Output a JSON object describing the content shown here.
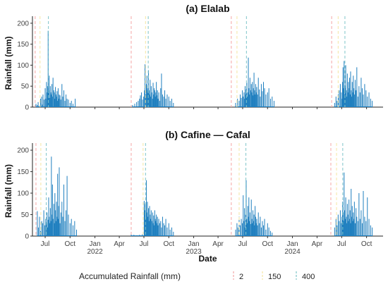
{
  "figure": {
    "x_axis_title": "Date",
    "legend": {
      "title": "Accumulated Rainfall (mm)",
      "items": [
        {
          "label": "2",
          "color": "#f4a6a6"
        },
        {
          "label": "150",
          "color": "#f5e6a3"
        },
        {
          "label": "400",
          "color": "#7fc4c9"
        }
      ]
    },
    "x_tick_labels": [
      {
        "date": "2021-07-01",
        "text": "Jul"
      },
      {
        "date": "2021-10-01",
        "text": "Oct"
      },
      {
        "date": "2022-01-01",
        "text": "Jan\n2022"
      },
      {
        "date": "2022-04-01",
        "text": "Apr"
      },
      {
        "date": "2022-07-01",
        "text": "Jul"
      },
      {
        "date": "2022-10-01",
        "text": "Oct"
      },
      {
        "date": "2023-01-01",
        "text": "Jan\n2023"
      },
      {
        "date": "2023-04-01",
        "text": "Apr"
      },
      {
        "date": "2023-07-01",
        "text": "Jul"
      },
      {
        "date": "2023-10-01",
        "text": "Oct"
      },
      {
        "date": "2024-01-01",
        "text": "Jan\n2024"
      },
      {
        "date": "2024-04-01",
        "text": "Apr"
      },
      {
        "date": "2024-07-01",
        "text": "Jul"
      },
      {
        "date": "2024-10-01",
        "text": "Oct"
      }
    ]
  },
  "chart_data": [
    {
      "type": "bar",
      "title": "(a) Elalab",
      "xlabel": "",
      "ylabel": "Rainfall (mm)",
      "ylim": [
        0,
        210
      ],
      "yticks": [
        0,
        50,
        100,
        150,
        200
      ],
      "xlim": [
        "2021-05-15",
        "2024-12-01"
      ],
      "bar_color": "#1f7fbf",
      "series": [
        {
          "x": [
            "2021-05-28",
            "2021-06-02",
            "2021-06-05",
            "2021-06-10",
            "2021-06-14",
            "2021-06-18",
            "2021-06-20",
            "2021-06-23",
            "2021-06-27",
            "2021-07-01",
            "2021-07-03",
            "2021-07-06",
            "2021-07-08",
            "2021-07-10",
            "2021-07-12",
            "2021-07-14",
            "2021-07-16",
            "2021-07-18",
            "2021-07-20",
            "2021-07-22",
            "2021-07-24",
            "2021-07-26",
            "2021-07-28",
            "2021-07-30",
            "2021-08-02",
            "2021-08-04",
            "2021-08-06",
            "2021-08-08",
            "2021-08-10",
            "2021-08-12",
            "2021-08-14",
            "2021-08-16",
            "2021-08-18",
            "2021-08-20",
            "2021-08-22",
            "2021-08-25",
            "2021-08-28",
            "2021-09-01",
            "2021-09-04",
            "2021-09-08",
            "2021-09-12",
            "2021-09-16",
            "2021-09-20",
            "2021-09-25",
            "2021-10-01",
            "2021-10-06",
            "2021-10-12",
            "2021-10-20"
          ],
          "y": [
            8,
            5,
            12,
            3,
            20,
            25,
            6,
            30,
            18,
            45,
            20,
            60,
            35,
            50,
            182,
            40,
            75,
            22,
            50,
            35,
            30,
            55,
            25,
            70,
            40,
            35,
            20,
            48,
            30,
            25,
            38,
            15,
            45,
            20,
            30,
            28,
            18,
            55,
            25,
            40,
            15,
            30,
            20,
            18,
            10,
            15,
            8,
            20
          ]
        },
        {
          "x": [
            "2022-05-20",
            "2022-05-28",
            "2022-06-04",
            "2022-06-10",
            "2022-06-15",
            "2022-06-18",
            "2022-06-22",
            "2022-06-26",
            "2022-06-30",
            "2022-07-03",
            "2022-07-05",
            "2022-07-08",
            "2022-07-10",
            "2022-07-12",
            "2022-07-14",
            "2022-07-16",
            "2022-07-18",
            "2022-07-20",
            "2022-07-22",
            "2022-07-24",
            "2022-07-26",
            "2022-07-28",
            "2022-07-30",
            "2022-08-02",
            "2022-08-04",
            "2022-08-06",
            "2022-08-08",
            "2022-08-10",
            "2022-08-12",
            "2022-08-14",
            "2022-08-16",
            "2022-08-18",
            "2022-08-20",
            "2022-08-22",
            "2022-08-25",
            "2022-08-28",
            "2022-09-01",
            "2022-09-04",
            "2022-09-08",
            "2022-09-12",
            "2022-09-16",
            "2022-09-20",
            "2022-09-25",
            "2022-10-01",
            "2022-10-06",
            "2022-10-12",
            "2022-10-18"
          ],
          "y": [
            5,
            8,
            12,
            15,
            20,
            28,
            35,
            18,
            25,
            40,
            102,
            30,
            55,
            75,
            45,
            35,
            88,
            40,
            30,
            65,
            25,
            50,
            35,
            20,
            58,
            30,
            45,
            40,
            25,
            35,
            60,
            28,
            40,
            20,
            35,
            15,
            45,
            80,
            30,
            25,
            40,
            20,
            30,
            25,
            15,
            20,
            10
          ]
        },
        {
          "x": [
            "2023-06-05",
            "2023-06-12",
            "2023-06-18",
            "2023-06-22",
            "2023-06-26",
            "2023-06-30",
            "2023-07-03",
            "2023-07-06",
            "2023-07-08",
            "2023-07-10",
            "2023-07-12",
            "2023-07-14",
            "2023-07-16",
            "2023-07-18",
            "2023-07-20",
            "2023-07-22",
            "2023-07-24",
            "2023-07-26",
            "2023-07-28",
            "2023-07-30",
            "2023-08-02",
            "2023-08-04",
            "2023-08-06",
            "2023-08-08",
            "2023-08-10",
            "2023-08-12",
            "2023-08-14",
            "2023-08-16",
            "2023-08-18",
            "2023-08-20",
            "2023-08-22",
            "2023-08-25",
            "2023-08-28",
            "2023-09-01",
            "2023-09-04",
            "2023-09-08",
            "2023-09-12",
            "2023-09-16",
            "2023-09-20",
            "2023-09-25",
            "2023-10-01",
            "2023-10-06",
            "2023-10-12",
            "2023-10-18",
            "2023-10-25"
          ],
          "y": [
            10,
            20,
            15,
            30,
            22,
            40,
            25,
            35,
            20,
            50,
            30,
            42,
            58,
            25,
            35,
            118,
            45,
            30,
            70,
            40,
            55,
            35,
            60,
            28,
            45,
            82,
            40,
            30,
            55,
            35,
            48,
            30,
            70,
            42,
            25,
            55,
            38,
            60,
            45,
            30,
            35,
            45,
            20,
            25,
            15
          ]
        },
        {
          "x": [
            "2024-06-05",
            "2024-06-10",
            "2024-06-14",
            "2024-06-18",
            "2024-06-22",
            "2024-06-26",
            "2024-06-30",
            "2024-07-02",
            "2024-07-04",
            "2024-07-06",
            "2024-07-08",
            "2024-07-10",
            "2024-07-12",
            "2024-07-14",
            "2024-07-16",
            "2024-07-18",
            "2024-07-20",
            "2024-07-22",
            "2024-07-24",
            "2024-07-26",
            "2024-07-28",
            "2024-07-30",
            "2024-08-01",
            "2024-08-03",
            "2024-08-05",
            "2024-08-07",
            "2024-08-09",
            "2024-08-11",
            "2024-08-13",
            "2024-08-15",
            "2024-08-17",
            "2024-08-20",
            "2024-08-23",
            "2024-08-26",
            "2024-08-30",
            "2024-09-03",
            "2024-09-07",
            "2024-09-11",
            "2024-09-15",
            "2024-09-19",
            "2024-09-24",
            "2024-09-29",
            "2024-10-04",
            "2024-10-10",
            "2024-10-16",
            "2024-10-22"
          ],
          "y": [
            10,
            25,
            15,
            30,
            40,
            55,
            35,
            20,
            60,
            95,
            45,
            110,
            30,
            50,
            100,
            40,
            25,
            80,
            35,
            60,
            45,
            70,
            30,
            85,
            40,
            25,
            60,
            35,
            75,
            45,
            30,
            65,
            40,
            95,
            25,
            50,
            35,
            70,
            45,
            30,
            55,
            40,
            25,
            35,
            20,
            15
          ]
        }
      ],
      "vlines": [
        {
          "label": "2",
          "dates": [
            "2021-05-25",
            "2022-05-15",
            "2023-05-20",
            "2024-05-25"
          ]
        },
        {
          "label": "150",
          "dates": [
            "2021-06-12",
            "2022-07-07",
            "2023-06-10",
            "2024-06-18"
          ]
        },
        {
          "label": "400",
          "dates": [
            "2021-07-13",
            "2022-07-17",
            "2023-07-15",
            "2024-07-13"
          ]
        }
      ]
    },
    {
      "type": "bar",
      "title": "(b) Cafine — Cafal",
      "xlabel": "Date",
      "ylabel": "Rainfall (mm)",
      "ylim": [
        0,
        210
      ],
      "yticks": [
        0,
        50,
        100,
        150,
        200
      ],
      "xlim": [
        "2021-05-15",
        "2024-12-01"
      ],
      "bar_color": "#1f7fbf",
      "series": [
        {
          "x": [
            "2021-06-02",
            "2021-06-06",
            "2021-06-10",
            "2021-06-14",
            "2021-06-18",
            "2021-06-22",
            "2021-06-26",
            "2021-06-30",
            "2021-07-03",
            "2021-07-06",
            "2021-07-08",
            "2021-07-10",
            "2021-07-12",
            "2021-07-14",
            "2021-07-16",
            "2021-07-18",
            "2021-07-20",
            "2021-07-22",
            "2021-07-24",
            "2021-07-26",
            "2021-07-28",
            "2021-07-30",
            "2021-08-02",
            "2021-08-04",
            "2021-08-06",
            "2021-08-08",
            "2021-08-10",
            "2021-08-12",
            "2021-08-14",
            "2021-08-16",
            "2021-08-18",
            "2021-08-20",
            "2021-08-22",
            "2021-08-25",
            "2021-08-28",
            "2021-09-01",
            "2021-09-04",
            "2021-09-08",
            "2021-09-12",
            "2021-09-16",
            "2021-09-20",
            "2021-09-25",
            "2021-10-01",
            "2021-10-06",
            "2021-10-12",
            "2021-10-18",
            "2021-10-25"
          ],
          "y": [
            58,
            20,
            45,
            12,
            35,
            30,
            60,
            25,
            40,
            30,
            55,
            20,
            38,
            90,
            45,
            30,
            65,
            35,
            185,
            50,
            120,
            40,
            75,
            30,
            100,
            60,
            35,
            80,
            45,
            145,
            40,
            70,
            160,
            30,
            55,
            80,
            45,
            120,
            35,
            60,
            140,
            50,
            30,
            40,
            25,
            35,
            15
          ]
        },
        {
          "x": [
            "2022-05-15",
            "2022-05-25",
            "2022-06-05",
            "2022-06-15",
            "2022-06-25",
            "2022-07-02",
            "2022-07-04",
            "2022-07-06",
            "2022-07-08",
            "2022-07-10",
            "2022-07-12",
            "2022-07-14",
            "2022-07-16",
            "2022-07-18",
            "2022-07-20",
            "2022-07-22",
            "2022-07-24",
            "2022-07-26",
            "2022-07-28",
            "2022-07-30",
            "2022-08-02",
            "2022-08-04",
            "2022-08-06",
            "2022-08-08",
            "2022-08-10",
            "2022-08-12",
            "2022-08-14",
            "2022-08-16",
            "2022-08-18",
            "2022-08-20",
            "2022-08-22",
            "2022-08-25",
            "2022-08-28",
            "2022-09-01",
            "2022-09-04",
            "2022-09-08",
            "2022-09-12",
            "2022-09-16",
            "2022-09-20",
            "2022-09-25",
            "2022-10-01",
            "2022-10-06",
            "2022-10-12",
            "2022-10-18"
          ],
          "y": [
            4,
            3,
            2,
            3,
            4,
            82,
            60,
            75,
            40,
            130,
            55,
            80,
            45,
            65,
            35,
            70,
            50,
            40,
            60,
            35,
            55,
            30,
            48,
            25,
            60,
            40,
            35,
            50,
            30,
            45,
            25,
            40,
            30,
            35,
            20,
            45,
            30,
            25,
            40,
            20,
            30,
            15,
            20,
            10
          ]
        },
        {
          "x": [
            "2023-06-05",
            "2023-06-10",
            "2023-06-14",
            "2023-06-18",
            "2023-06-22",
            "2023-06-26",
            "2023-06-30",
            "2023-07-03",
            "2023-07-06",
            "2023-07-08",
            "2023-07-10",
            "2023-07-12",
            "2023-07-14",
            "2023-07-16",
            "2023-07-18",
            "2023-07-20",
            "2023-07-22",
            "2023-07-24",
            "2023-07-26",
            "2023-07-28",
            "2023-07-30",
            "2023-08-02",
            "2023-08-04",
            "2023-08-06",
            "2023-08-08",
            "2023-08-10",
            "2023-08-12",
            "2023-08-14",
            "2023-08-16",
            "2023-08-18",
            "2023-08-20",
            "2023-08-22",
            "2023-08-25",
            "2023-08-28",
            "2023-09-01",
            "2023-09-04",
            "2023-09-08",
            "2023-09-12",
            "2023-09-16",
            "2023-09-20",
            "2023-09-25",
            "2023-10-01",
            "2023-10-06",
            "2023-10-12",
            "2023-10-18"
          ],
          "y": [
            15,
            30,
            20,
            45,
            25,
            40,
            30,
            95,
            35,
            65,
            20,
            50,
            130,
            40,
            30,
            70,
            45,
            90,
            35,
            55,
            28,
            85,
            40,
            30,
            60,
            35,
            50,
            25,
            70,
            45,
            30,
            40,
            25,
            55,
            30,
            45,
            20,
            35,
            25,
            40,
            15,
            30,
            20,
            12,
            8
          ]
        },
        {
          "x": [
            "2024-06-05",
            "2024-06-10",
            "2024-06-14",
            "2024-06-18",
            "2024-06-22",
            "2024-06-26",
            "2024-06-30",
            "2024-07-02",
            "2024-07-04",
            "2024-07-06",
            "2024-07-08",
            "2024-07-10",
            "2024-07-12",
            "2024-07-14",
            "2024-07-16",
            "2024-07-18",
            "2024-07-20",
            "2024-07-22",
            "2024-07-24",
            "2024-07-26",
            "2024-07-28",
            "2024-07-30",
            "2024-08-01",
            "2024-08-03",
            "2024-08-05",
            "2024-08-07",
            "2024-08-09",
            "2024-08-11",
            "2024-08-13",
            "2024-08-15",
            "2024-08-17",
            "2024-08-20",
            "2024-08-23",
            "2024-08-26",
            "2024-08-30",
            "2024-09-03",
            "2024-09-07",
            "2024-09-11",
            "2024-09-15",
            "2024-09-19",
            "2024-09-24",
            "2024-09-29",
            "2024-10-04",
            "2024-10-10",
            "2024-10-16",
            "2024-10-22"
          ],
          "y": [
            20,
            40,
            25,
            50,
            35,
            60,
            30,
            45,
            80,
            55,
            35,
            148,
            60,
            40,
            90,
            45,
            30,
            75,
            50,
            35,
            85,
            40,
            60,
            30,
            110,
            45,
            70,
            35,
            55,
            40,
            80,
            30,
            65,
            45,
            35,
            100,
            40,
            60,
            30,
            105,
            45,
            35,
            90,
            40,
            25,
            20
          ]
        }
      ],
      "vlines": [
        {
          "label": "2",
          "dates": [
            "2021-05-28",
            "2022-05-15",
            "2023-05-20",
            "2024-05-22"
          ]
        },
        {
          "label": "150",
          "dates": [
            "2021-06-15",
            "2022-06-28",
            "2023-06-18",
            "2024-06-12"
          ]
        },
        {
          "label": "400",
          "dates": [
            "2021-07-05",
            "2022-07-07",
            "2023-07-13",
            "2024-07-05"
          ]
        }
      ]
    }
  ]
}
